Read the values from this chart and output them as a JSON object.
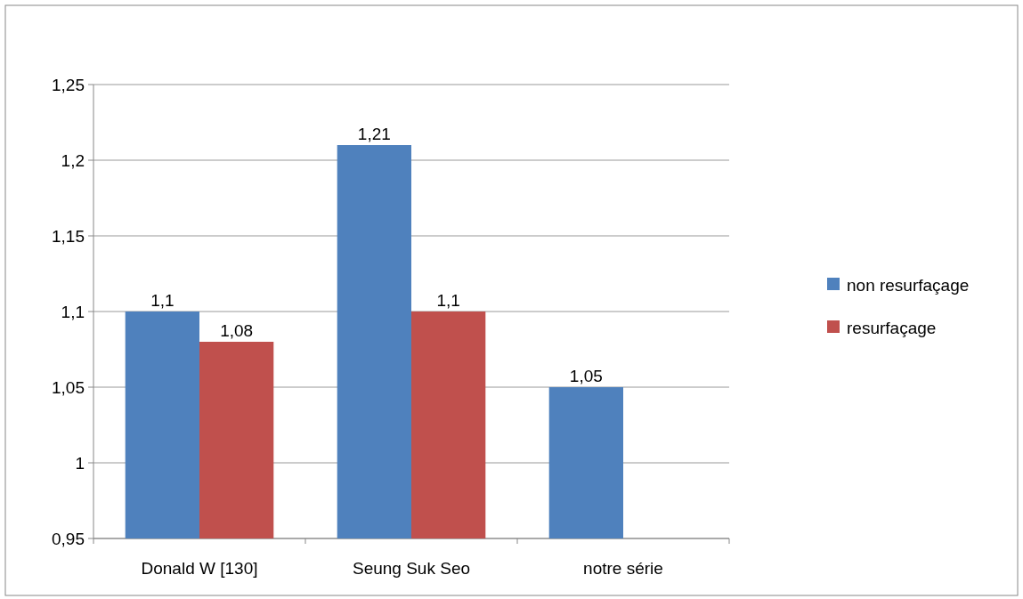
{
  "chart_data": {
    "type": "bar",
    "categories": [
      "Donald W [130]",
      "Seung Suk Seo",
      "notre série"
    ],
    "series": [
      {
        "name": "non resurfaçage",
        "color": "#4f81bd",
        "values": [
          1.1,
          1.21,
          1.05
        ],
        "value_labels": [
          "1,1",
          "1,21",
          "1,05"
        ]
      },
      {
        "name": "resurfaçage",
        "color": "#c0504d",
        "values": [
          1.08,
          1.1,
          null
        ],
        "value_labels": [
          "1,08",
          "1,1",
          null
        ]
      }
    ],
    "ylim": [
      0.95,
      1.25
    ],
    "yticks": [
      {
        "value": 0.95,
        "label": "0,95"
      },
      {
        "value": 1,
        "label": "1"
      },
      {
        "value": 1.05,
        "label": "1,05"
      },
      {
        "value": 1.1,
        "label": "1,1"
      },
      {
        "value": 1.15,
        "label": "1,15"
      },
      {
        "value": 1.2,
        "label": "1,2"
      },
      {
        "value": 1.25,
        "label": "1,25"
      }
    ],
    "grid": "y",
    "legend": "right"
  }
}
